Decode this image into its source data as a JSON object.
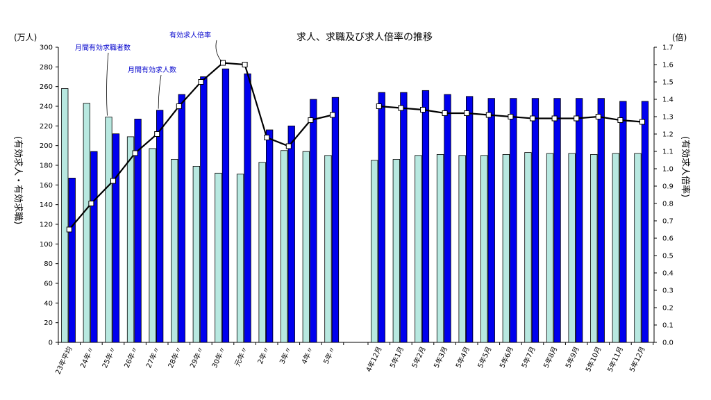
{
  "chart_data": {
    "type": "bar",
    "title": "求人、求職及び求人倍率の推移",
    "y_left_unit": "(万人)",
    "y_right_unit": "(倍)",
    "ylabel_left": "(有効求人・有効求職)",
    "ylabel_right": "(有効求人倍率)",
    "ylim_left": [
      0,
      300
    ],
    "ylim_right": [
      0,
      1.7
    ],
    "left_ticks": [
      0,
      20,
      40,
      60,
      80,
      100,
      120,
      140,
      160,
      180,
      200,
      220,
      240,
      260,
      280,
      300
    ],
    "right_ticks": [
      "0.0",
      "0.1",
      "0.2",
      "0.3",
      "0.4",
      "0.5",
      "0.6",
      "0.7",
      "0.8",
      "0.9",
      "1.0",
      "1.1",
      "1.2",
      "1.3",
      "1.4",
      "1.5",
      "1.6",
      "1.7"
    ],
    "grid": false,
    "groups": [
      {
        "categories": [
          "23年平均",
          "24年〃",
          "25年〃",
          "26年〃",
          "27年〃",
          "28年〃",
          "29年〃",
          "30年〃",
          "元年〃",
          "2年〃",
          "3年〃",
          "4年〃",
          "5年〃"
        ],
        "series": [
          {
            "name": "月間有効求職者数",
            "axis": "left",
            "color": "#b8e8e0",
            "values": [
              258,
              243,
              229,
              209,
              197,
              186,
              179,
              172,
              171,
              183,
              195,
              194,
              190
            ]
          },
          {
            "name": "月間有効求人数",
            "axis": "left",
            "color": "#0000ee",
            "values": [
              167,
              194,
              212,
              227,
              236,
              252,
              270,
              278,
              273,
              216,
              220,
              247,
              249
            ]
          },
          {
            "name": "有効求人倍率",
            "axis": "right",
            "color": "#000000",
            "values": [
              0.65,
              0.8,
              0.93,
              1.09,
              1.2,
              1.36,
              1.5,
              1.61,
              1.6,
              1.18,
              1.13,
              1.28,
              1.31
            ]
          }
        ]
      },
      {
        "categories": [
          "4年12月",
          "5年1月",
          "5年2月",
          "5年3月",
          "5年4月",
          "5年5月",
          "5年6月",
          "5年7月",
          "5年8月",
          "5年9月",
          "5年10月",
          "5年11月",
          "5年12月"
        ],
        "series": [
          {
            "name": "月間有効求職者数",
            "axis": "left",
            "color": "#b8e8e0",
            "values": [
              185,
              186,
              190,
              191,
              190,
              190,
              191,
              193,
              192,
              192,
              191,
              192,
              192
            ]
          },
          {
            "name": "月間有効求人数",
            "axis": "left",
            "color": "#0000ee",
            "values": [
              254,
              254,
              256,
              252,
              250,
              248,
              248,
              248,
              248,
              248,
              248,
              245,
              245
            ]
          },
          {
            "name": "有効求人倍率",
            "axis": "right",
            "color": "#000000",
            "values": [
              1.36,
              1.35,
              1.34,
              1.32,
              1.32,
              1.31,
              1.3,
              1.29,
              1.29,
              1.29,
              1.3,
              1.28,
              1.27
            ]
          }
        ]
      }
    ],
    "annotations": [
      {
        "text": "月間有効求職者数",
        "series": "月間有効求職者数",
        "group": 0,
        "index": 2
      },
      {
        "text": "月間有効求人数",
        "series": "月間有効求人数",
        "group": 0,
        "index": 4
      },
      {
        "text": "有効求人倍率",
        "series": "有効求人倍率",
        "group": 0,
        "index": 7
      }
    ]
  }
}
